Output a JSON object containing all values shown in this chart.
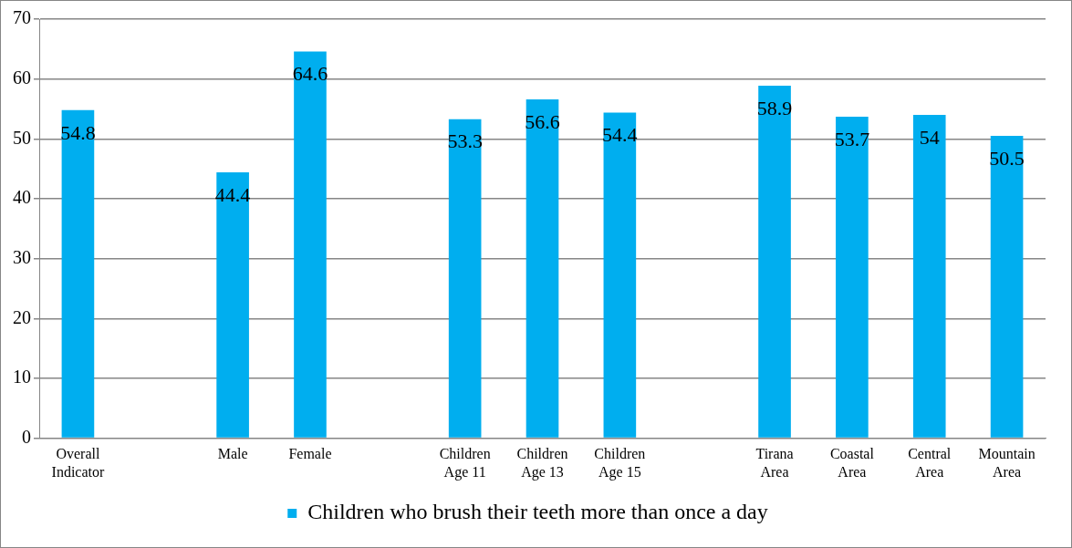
{
  "chart_data": {
    "type": "bar",
    "categories": [
      "Overall Indicator",
      null,
      "Male",
      "Female",
      null,
      "Children Age 11",
      "Children Age 13",
      "Children Age 15",
      null,
      "Tirana Area",
      "Coastal Area",
      "Central Area",
      "Mountain Area"
    ],
    "series": [
      {
        "name": "Children who brush their teeth more than once a day",
        "color": "#00aeef",
        "values": [
          54.8,
          null,
          44.4,
          64.6,
          null,
          53.3,
          56.6,
          54.4,
          null,
          58.9,
          53.7,
          54,
          50.5
        ]
      }
    ],
    "ylim": [
      0,
      70
    ],
    "yticks": [
      0,
      10,
      20,
      30,
      40,
      50,
      60,
      70
    ],
    "grid": "y",
    "legend": "bottom",
    "data_labels": true
  }
}
